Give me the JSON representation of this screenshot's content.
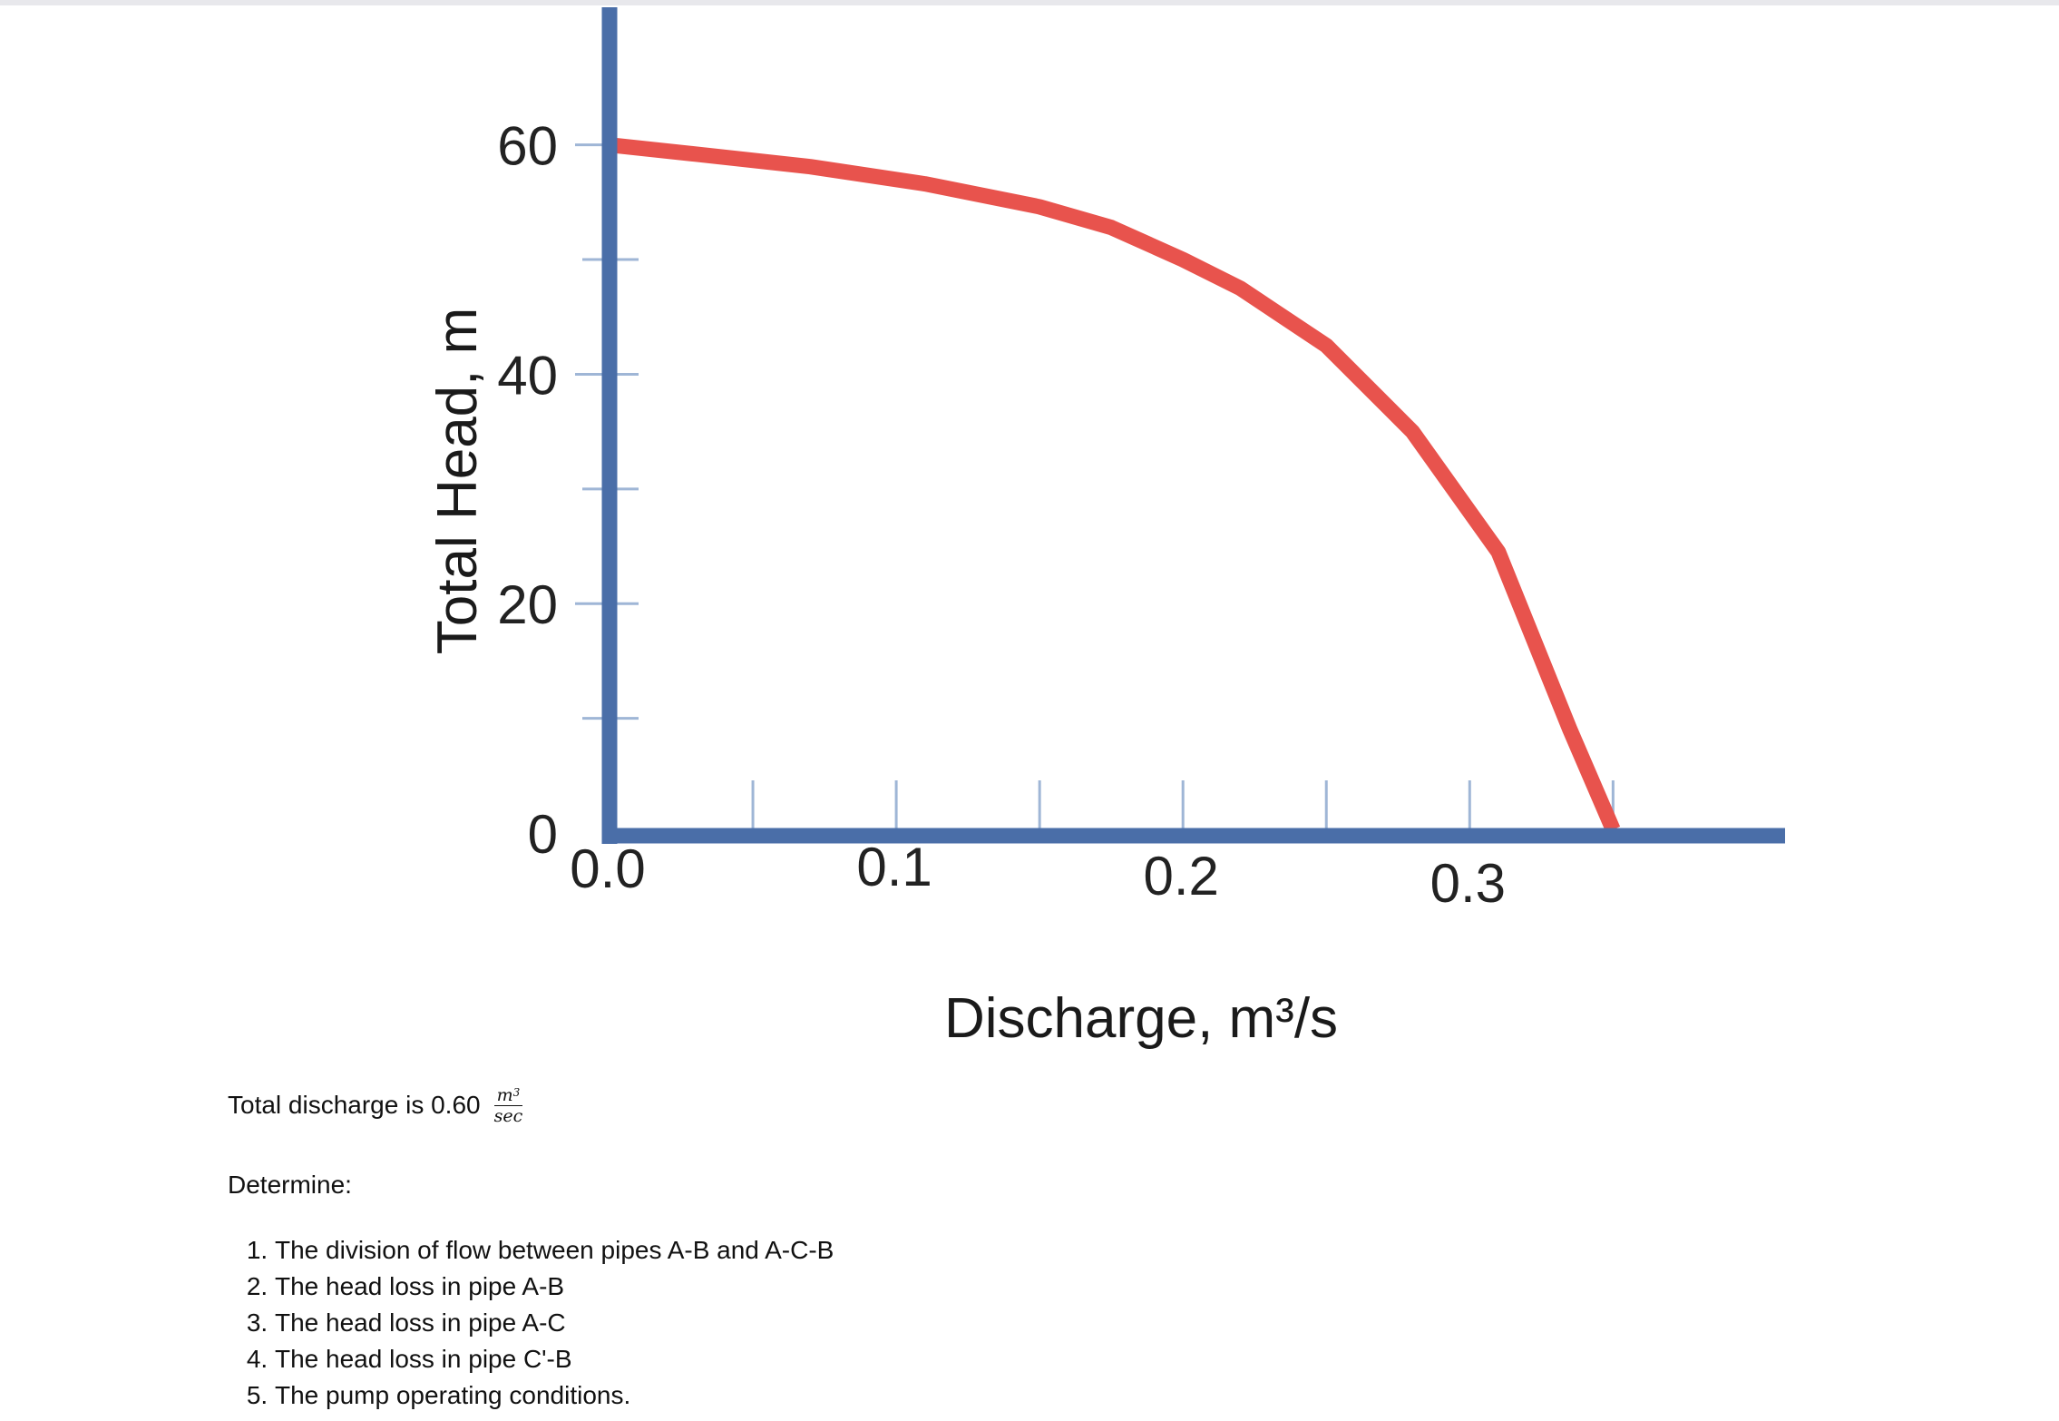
{
  "chart_data": {
    "type": "line",
    "ylabel": "Total Head, m",
    "xlabel": "Discharge, m³/s",
    "x_ticks": [
      "0.0",
      "0.1",
      "0.2",
      "0.3"
    ],
    "y_ticks": [
      "0",
      "20",
      "40",
      "60"
    ],
    "x_tick_values": [
      0.0,
      0.1,
      0.2,
      0.3
    ],
    "y_tick_values": [
      0,
      20,
      40,
      60
    ],
    "x_minor_ticks": [
      0.05,
      0.15,
      0.25,
      0.35
    ],
    "y_minor_ticks": [
      10,
      30,
      50
    ],
    "xlim": [
      0.0,
      0.41
    ],
    "ylim": [
      0,
      72
    ],
    "grid": false,
    "colors": {
      "axis": "#4a6ea8",
      "curve": "#e8534d",
      "tick": "#9fb6d6"
    },
    "series": [
      {
        "x": [
          0.0,
          0.03,
          0.07,
          0.11,
          0.15,
          0.175,
          0.2,
          0.22,
          0.25,
          0.28,
          0.31,
          0.335,
          0.35
        ],
        "y": [
          60,
          59.2,
          58.1,
          56.6,
          54.6,
          52.8,
          50,
          47.5,
          42.5,
          35,
          24.5,
          9,
          0.3
        ]
      }
    ]
  },
  "problem": {
    "discharge_text": "Total discharge is 0.60",
    "unit_num": "m",
    "unit_num_sup": "3",
    "unit_den": "sec",
    "determine_label": "Determine:",
    "tasks": [
      "The division of flow between pipes A-B and A-C-B",
      "The head loss in pipe A-B",
      "The head loss in pipe A-C",
      "The head loss in pipe C'-B",
      "The pump operating conditions."
    ]
  }
}
